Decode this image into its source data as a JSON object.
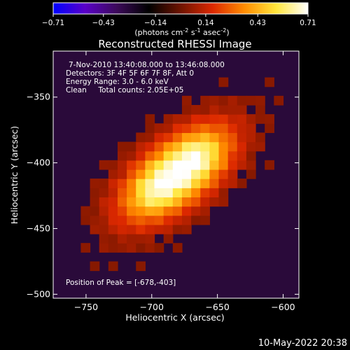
{
  "chart_data": {
    "type": "heatmap",
    "title": "Reconstructed RHESSI Image",
    "colorbar": {
      "min": -0.71,
      "max": 0.71,
      "tick_labels": [
        "-0.71",
        "-0.43",
        "-0.14",
        "0.14",
        "0.43",
        "0.71"
      ],
      "unit_label": {
        "prefix": "(photons cm",
        "sup1": "-2",
        "mid1": " s",
        "sup2": "-1",
        "mid2": " asec",
        "sup3": "-2",
        "suffix": ")"
      }
    },
    "xlabel": "Heliocentric X (arcsec)",
    "ylabel": "Heliocentric Y (arcsec)",
    "xlim": [
      -775,
      -588
    ],
    "ylim": [
      -503,
      -315
    ],
    "x_ticks": [
      -750,
      -700,
      -650,
      -600
    ],
    "x_tick_labels": [
      "−750",
      "−700",
      "−650",
      "−600"
    ],
    "y_ticks": [
      -350,
      -400,
      -450,
      -500
    ],
    "y_tick_labels": [
      "−350",
      "−400",
      "−450",
      "−500"
    ],
    "annotations": [
      "7-Nov-2010 13:40:08.000 to 13:46:08.000",
      "Detectors: 3F 4F 5F 6F 7F 8F, Att 0",
      "Energy Range: 3.0 - 6.0 keV",
      "Clean     Total counts: 2.05E+05"
    ],
    "peak_text": "Position of Peak = [-678,-403]",
    "peak": [
      -678,
      -403
    ],
    "source_shape": {
      "center": [
        -681,
        -408
      ],
      "long_axis_angle_deg": 38,
      "sigma_long_arcsec": 34,
      "sigma_short_arcsec": 17,
      "max_value": 0.71
    },
    "color_scale": [
      "#0000ff",
      "#5a00c8",
      "#3c0a5a",
      "#000000",
      "#6e1400",
      "#dc2800",
      "#ff8c00",
      "#ffe63c",
      "#ffffff"
    ],
    "background_color": "#2a0a3a"
  },
  "footer": {
    "timestamp": "10-May-2022 20:38"
  }
}
